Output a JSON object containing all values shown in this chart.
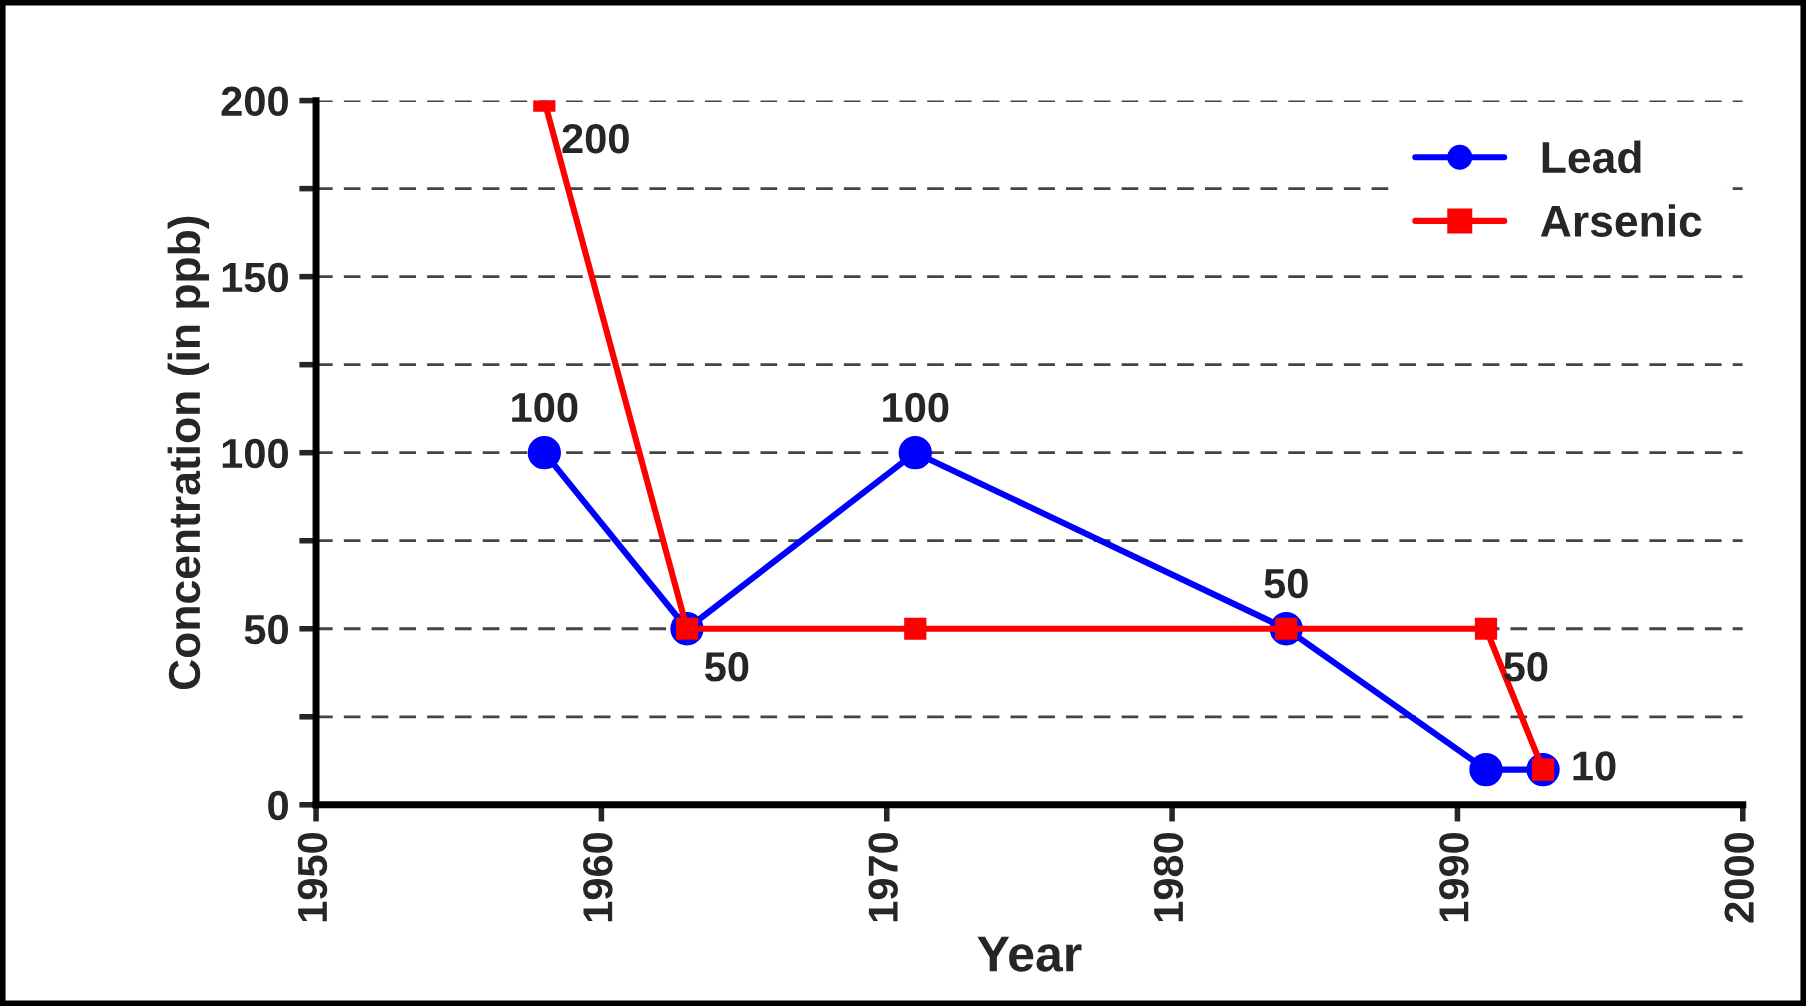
{
  "chart_data": {
    "type": "line",
    "xlabel": "Year",
    "ylabel": "Concentration (in ppb)",
    "x": [
      1958,
      1963,
      1971,
      1984,
      1991,
      1993
    ],
    "series": [
      {
        "name": "Lead",
        "color": "#0000ff",
        "marker": "circle",
        "values": [
          100,
          50,
          100,
          50,
          10,
          10
        ],
        "value_labels": [
          "100",
          null,
          "100",
          "50",
          null,
          null
        ]
      },
      {
        "name": "Arsenic",
        "color": "#ff0000",
        "marker": "square",
        "values": [
          200,
          50,
          50,
          50,
          50,
          10
        ],
        "value_labels": [
          "200",
          "50",
          null,
          null,
          "50",
          "10"
        ]
      }
    ],
    "xlim": [
      1950,
      2000
    ],
    "xticks": [
      1950,
      1960,
      1970,
      1980,
      1990,
      2000
    ],
    "ylim": [
      0,
      200
    ],
    "yticks": [
      0,
      {
        "value": 25,
        "label": null
      },
      50,
      {
        "value": 75,
        "label": null
      },
      100,
      {
        "value": 125,
        "label": null
      },
      150,
      {
        "value": 175,
        "label": null
      },
      200
    ],
    "grid": "y",
    "legend": "top right",
    "line_style": "solid"
  }
}
